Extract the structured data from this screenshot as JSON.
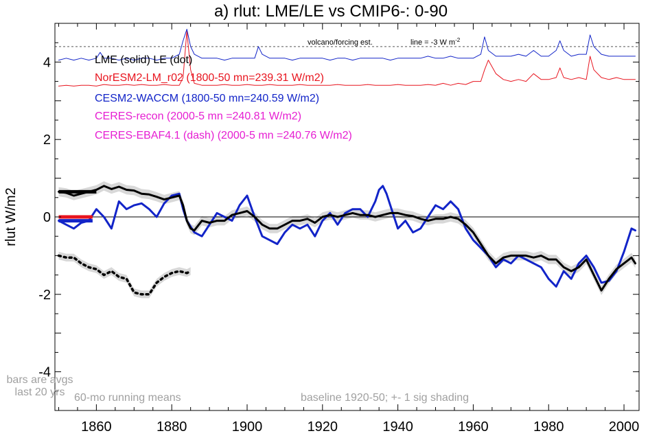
{
  "chart_data": {
    "type": "line",
    "title": "a) rlut: LME/LE vs CMIP6-: 0-90",
    "xlabel": "",
    "ylabel": "rlut W/m2",
    "xlim": [
      1849,
      2004
    ],
    "ylim": [
      -5,
      5
    ],
    "xticks": [
      1860,
      1880,
      1900,
      1920,
      1940,
      1960,
      1980,
      2000
    ],
    "yticks": [
      -4,
      -2,
      0,
      2,
      4
    ],
    "grid": false,
    "legend": [
      {
        "text": "LME (solid)   LE (dot)",
        "color": "#000000"
      },
      {
        "text": "NorESM2-LM_r02 (1800-50 mn=239.31 W/m2)",
        "color": "#e8141e"
      },
      {
        "text": "CESM2-WACCM (1800-50 mn=240.59 W/m2)",
        "color": "#1224c8"
      },
      {
        "text": "CERES-recon (2000-5 mn =240.81 W/m2)",
        "color": "#e61ed2"
      },
      {
        "text": "CERES-EBAF4.1 (dash) (2000-5 mn =240.76 W/m2)",
        "color": "#e61ed2"
      }
    ],
    "annotations": {
      "volcano": "volcano/forcing est.",
      "line_note": "line = -3 W m",
      "line_note_sup": "-2",
      "bars_note_1": "bars are avgs",
      "bars_note_2": "last 20 yrs",
      "running": "60-mo running means",
      "baseline": "baseline 1920-50; +- 1 sig shading"
    },
    "reference_line_y": 4.4,
    "series": [
      {
        "name": "LME",
        "color": "#000000",
        "style": "solid",
        "x": [
          1850,
          1852,
          1854,
          1856,
          1858,
          1860,
          1862,
          1864,
          1866,
          1868,
          1870,
          1872,
          1874,
          1876,
          1878,
          1880,
          1882,
          1883,
          1884,
          1885,
          1886,
          1888,
          1890,
          1892,
          1894,
          1896,
          1898,
          1900,
          1902,
          1904,
          1906,
          1908,
          1910,
          1912,
          1914,
          1916,
          1918,
          1920,
          1922,
          1924,
          1926,
          1928,
          1930,
          1932,
          1934,
          1936,
          1938,
          1940,
          1942,
          1944,
          1946,
          1948,
          1950,
          1952,
          1954,
          1956,
          1958,
          1960,
          1962,
          1964,
          1966,
          1968,
          1970,
          1972,
          1974,
          1976,
          1978,
          1980,
          1982,
          1984,
          1986,
          1988,
          1990,
          1992,
          1994,
          1996,
          1998,
          2000,
          2002,
          2003
        ],
        "y": [
          0.65,
          0.62,
          0.55,
          0.6,
          0.65,
          0.7,
          0.8,
          0.72,
          0.78,
          0.7,
          0.68,
          0.6,
          0.58,
          0.52,
          0.45,
          0.5,
          0.55,
          0.3,
          -0.1,
          -0.3,
          -0.35,
          -0.1,
          -0.15,
          -0.1,
          -0.1,
          0.05,
          0.1,
          0.15,
          0.0,
          -0.2,
          -0.3,
          -0.3,
          -0.2,
          -0.1,
          -0.1,
          -0.05,
          -0.15,
          0.0,
          0.05,
          0.0,
          0.05,
          0.1,
          0.05,
          0.05,
          0.0,
          0.05,
          0.1,
          0.1,
          0.05,
          0.02,
          -0.05,
          -0.1,
          -0.05,
          -0.05,
          0.0,
          -0.05,
          -0.2,
          -0.4,
          -0.7,
          -1.0,
          -1.2,
          -1.05,
          -1.0,
          -1.0,
          -1.0,
          -1.05,
          -1.0,
          -1.1,
          -1.1,
          -1.3,
          -1.4,
          -1.3,
          -1.1,
          -1.5,
          -1.9,
          -1.6,
          -1.35,
          -1.2,
          -1.05,
          -1.2
        ]
      },
      {
        "name": "LE",
        "color": "#000000",
        "style": "dot",
        "x": [
          1850,
          1852,
          1854,
          1856,
          1858,
          1860,
          1862,
          1864,
          1866,
          1868,
          1870,
          1872,
          1874,
          1876,
          1878,
          1880,
          1882,
          1884,
          1885
        ],
        "y": [
          -1.0,
          -1.05,
          -1.05,
          -1.2,
          -1.3,
          -1.35,
          -1.5,
          -1.4,
          -1.55,
          -1.6,
          -1.95,
          -2.0,
          -2.0,
          -1.7,
          -1.55,
          -1.45,
          -1.4,
          -1.45,
          -1.4
        ]
      },
      {
        "name": "CESM2-WACCM",
        "color": "#1224c8",
        "style": "solid",
        "x": [
          1850,
          1852,
          1854,
          1856,
          1858,
          1860,
          1862,
          1864,
          1866,
          1868,
          1870,
          1872,
          1874,
          1876,
          1878,
          1880,
          1882,
          1883,
          1884,
          1886,
          1888,
          1890,
          1892,
          1894,
          1896,
          1898,
          1900,
          1902,
          1904,
          1906,
          1908,
          1910,
          1912,
          1914,
          1916,
          1918,
          1920,
          1922,
          1924,
          1926,
          1928,
          1930,
          1932,
          1934,
          1935,
          1936,
          1937,
          1938,
          1940,
          1942,
          1944,
          1946,
          1948,
          1950,
          1952,
          1954,
          1956,
          1958,
          1960,
          1962,
          1964,
          1966,
          1968,
          1970,
          1972,
          1974,
          1976,
          1978,
          1980,
          1982,
          1984,
          1986,
          1988,
          1990,
          1992,
          1994,
          1996,
          1998,
          2000,
          2002,
          2003
        ],
        "y": [
          -0.1,
          -0.2,
          -0.3,
          -0.15,
          -0.1,
          0.2,
          0.0,
          -0.3,
          0.4,
          0.2,
          0.3,
          0.35,
          0.2,
          0.0,
          0.35,
          0.55,
          0.6,
          0.2,
          -0.1,
          -0.4,
          -0.5,
          -0.2,
          0.1,
          0.0,
          -0.1,
          0.3,
          0.55,
          0.0,
          -0.5,
          -0.6,
          -0.7,
          -0.4,
          -0.2,
          -0.3,
          -0.2,
          -0.5,
          -0.1,
          0.1,
          -0.2,
          0.1,
          0.2,
          0.2,
          0.0,
          0.4,
          0.7,
          0.8,
          0.6,
          0.3,
          -0.3,
          -0.1,
          -0.4,
          -0.3,
          0.0,
          0.3,
          0.2,
          0.4,
          0.2,
          -0.3,
          -0.6,
          -0.8,
          -1.0,
          -1.3,
          -1.1,
          -1.2,
          -1.0,
          -1.1,
          -1.2,
          -1.3,
          -1.6,
          -1.8,
          -1.4,
          -1.6,
          -1.2,
          -1.0,
          -1.3,
          -1.7,
          -1.65,
          -1.4,
          -0.9,
          -0.3,
          -0.35
        ]
      },
      {
        "name": "CESM2-WACCM forcing",
        "color": "#1224c8",
        "style": "solid",
        "x": [
          1850,
          1852,
          1854,
          1856,
          1858,
          1860,
          1861,
          1862,
          1864,
          1866,
          1868,
          1870,
          1872,
          1874,
          1876,
          1878,
          1880,
          1882,
          1883,
          1884,
          1885,
          1886,
          1888,
          1890,
          1892,
          1894,
          1896,
          1898,
          1900,
          1902,
          1903,
          1904,
          1906,
          1908,
          1910,
          1912,
          1914,
          1916,
          1918,
          1920,
          1922,
          1924,
          1926,
          1928,
          1930,
          1932,
          1934,
          1936,
          1938,
          1940,
          1942,
          1944,
          1946,
          1948,
          1950,
          1952,
          1954,
          1956,
          1958,
          1960,
          1962,
          1963,
          1964,
          1966,
          1968,
          1970,
          1972,
          1974,
          1976,
          1978,
          1980,
          1982,
          1983,
          1984,
          1986,
          1988,
          1990,
          1991,
          1992,
          1994,
          1996,
          1998,
          2000,
          2002,
          2003
        ],
        "y": [
          4.05,
          4.1,
          4.05,
          4.1,
          4.05,
          4.1,
          4.25,
          4.1,
          4.1,
          4.05,
          4.1,
          4.05,
          4.1,
          4.1,
          4.05,
          4.1,
          4.1,
          4.2,
          4.55,
          4.85,
          4.4,
          4.2,
          4.1,
          4.1,
          4.1,
          4.05,
          4.1,
          4.1,
          4.1,
          4.1,
          4.4,
          4.2,
          4.1,
          4.1,
          4.1,
          4.05,
          4.1,
          4.1,
          4.1,
          4.1,
          4.05,
          4.1,
          4.1,
          4.05,
          4.1,
          4.1,
          4.1,
          4.1,
          4.05,
          4.1,
          4.1,
          4.1,
          4.1,
          4.15,
          4.1,
          4.1,
          4.15,
          4.1,
          4.1,
          4.1,
          4.2,
          4.65,
          4.3,
          4.15,
          4.15,
          4.15,
          4.2,
          4.15,
          4.3,
          4.15,
          4.15,
          4.3,
          4.55,
          4.3,
          4.15,
          4.2,
          4.2,
          4.7,
          4.4,
          4.2,
          4.15,
          4.15,
          4.15,
          4.15,
          4.15
        ]
      },
      {
        "name": "NorESM2-LM_r02 forcing",
        "color": "#e8141e",
        "style": "solid",
        "x": [
          1850,
          1852,
          1854,
          1856,
          1858,
          1860,
          1862,
          1864,
          1866,
          1868,
          1870,
          1872,
          1874,
          1876,
          1878,
          1880,
          1882,
          1883,
          1884,
          1885,
          1886,
          1888,
          1890,
          1892,
          1894,
          1896,
          1898,
          1900,
          1902,
          1904,
          1906,
          1908,
          1910,
          1912,
          1914,
          1916,
          1918,
          1920,
          1922,
          1924,
          1926,
          1928,
          1930,
          1932,
          1934,
          1936,
          1938,
          1940,
          1942,
          1944,
          1946,
          1948,
          1950,
          1952,
          1954,
          1956,
          1958,
          1960,
          1962,
          1963,
          1964,
          1966,
          1968,
          1970,
          1972,
          1974,
          1976,
          1978,
          1980,
          1982,
          1983,
          1984,
          1986,
          1988,
          1990,
          1991,
          1992,
          1994,
          1996,
          1998,
          2000,
          2002,
          2003
        ],
        "y": [
          3.38,
          3.4,
          3.38,
          3.4,
          3.4,
          3.38,
          3.42,
          3.4,
          3.4,
          3.42,
          3.4,
          3.42,
          3.4,
          3.4,
          3.42,
          3.4,
          3.4,
          3.6,
          4.8,
          3.8,
          3.45,
          3.4,
          3.4,
          3.4,
          3.42,
          3.4,
          3.4,
          3.42,
          3.4,
          3.4,
          3.42,
          3.4,
          3.4,
          3.4,
          3.42,
          3.4,
          3.4,
          3.4,
          3.4,
          3.42,
          3.4,
          3.4,
          3.4,
          3.42,
          3.4,
          3.4,
          3.4,
          3.42,
          3.4,
          3.4,
          3.4,
          3.42,
          3.4,
          3.45,
          3.4,
          3.45,
          3.42,
          3.5,
          3.5,
          3.8,
          4.05,
          3.7,
          3.55,
          3.5,
          3.55,
          3.5,
          3.7,
          3.55,
          3.55,
          3.6,
          3.85,
          3.6,
          3.55,
          3.6,
          3.55,
          4.15,
          3.8,
          3.6,
          3.55,
          3.6,
          3.55,
          3.55,
          3.55
        ]
      }
    ],
    "bars": [
      {
        "name": "LME",
        "color": "#000000",
        "x": [
          1850,
          1860
        ],
        "y": 0.65
      },
      {
        "name": "NorESM2-LM_r02",
        "color": "#e8141e",
        "x": [
          1850,
          1859
        ],
        "y": 0.0
      },
      {
        "name": "CESM2-WACCM",
        "color": "#1224c8",
        "x": [
          1850,
          1859
        ],
        "y": -0.1
      }
    ]
  }
}
